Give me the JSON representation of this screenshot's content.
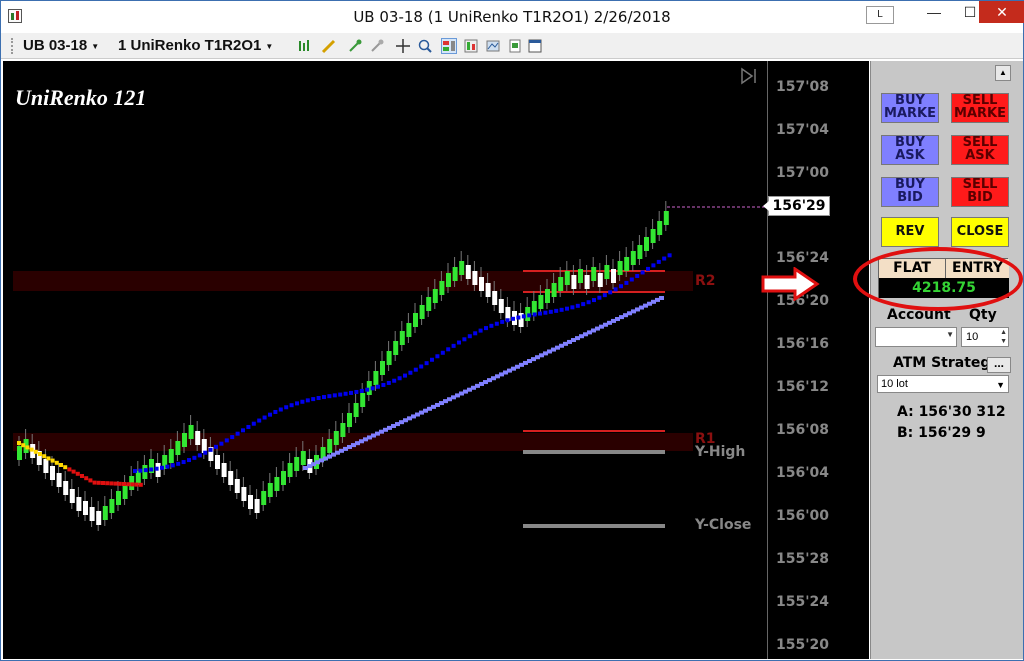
{
  "window": {
    "title": "UB 03-18 (1 UniRenko T1R2O1)  2/26/2018",
    "layout_button": "L",
    "minimize_glyph": "—",
    "maximize_glyph": "☐",
    "close_glyph": "✕"
  },
  "toolbar": {
    "instrument": "UB 03-18",
    "bar_type": "1 UniRenko T1R2O1",
    "icons": [
      "bar-type-icon",
      "draw-icon",
      "properties-icon",
      "hide-icon",
      "crosshair-icon",
      "zoom-icon",
      "chart-trader-icon",
      "data-box-icon",
      "templates-icon",
      "sheet-icon",
      "window-icon"
    ]
  },
  "chart": {
    "title": "UniRenko 121",
    "last_price": "156'29",
    "price_labels": [
      "157'08",
      "157'04",
      "157'00",
      "156'24",
      "156'20",
      "156'16",
      "156'12",
      "156'08",
      "156'04",
      "156'00",
      "155'28",
      "155'24",
      "155'20"
    ],
    "level_labels": {
      "r2": "R2",
      "r1": "R1",
      "y_high": "Y-High",
      "y_close": "Y-Close"
    },
    "colors": {
      "up_bar": "#33e633",
      "down_bar": "#ffffff",
      "fast_ma": "#0000ee",
      "slow_ma": "#8080ff",
      "pivot": "#d42020",
      "yesterday": "#888888"
    }
  },
  "panel": {
    "buttons": {
      "buy_market": "BUY MARKE",
      "sell_market": "SELL MARKE",
      "buy_ask": "BUY ASK",
      "sell_ask": "SELL ASK",
      "buy_bid": "BUY BID",
      "sell_bid": "SELL BID",
      "rev": "REV",
      "close": "CLOSE"
    },
    "position": {
      "state": "FLAT",
      "entry": "ENTRY",
      "pnl": "4218.75"
    },
    "account_label": "Account",
    "qty_label": "Qty",
    "qty_value": "10",
    "atm_label": "ATM Strategy",
    "atm_more": "...",
    "atm_value": "10 lot",
    "ask_line": "A: 156'30   312",
    "bid_line": "B: 156'29   9"
  }
}
